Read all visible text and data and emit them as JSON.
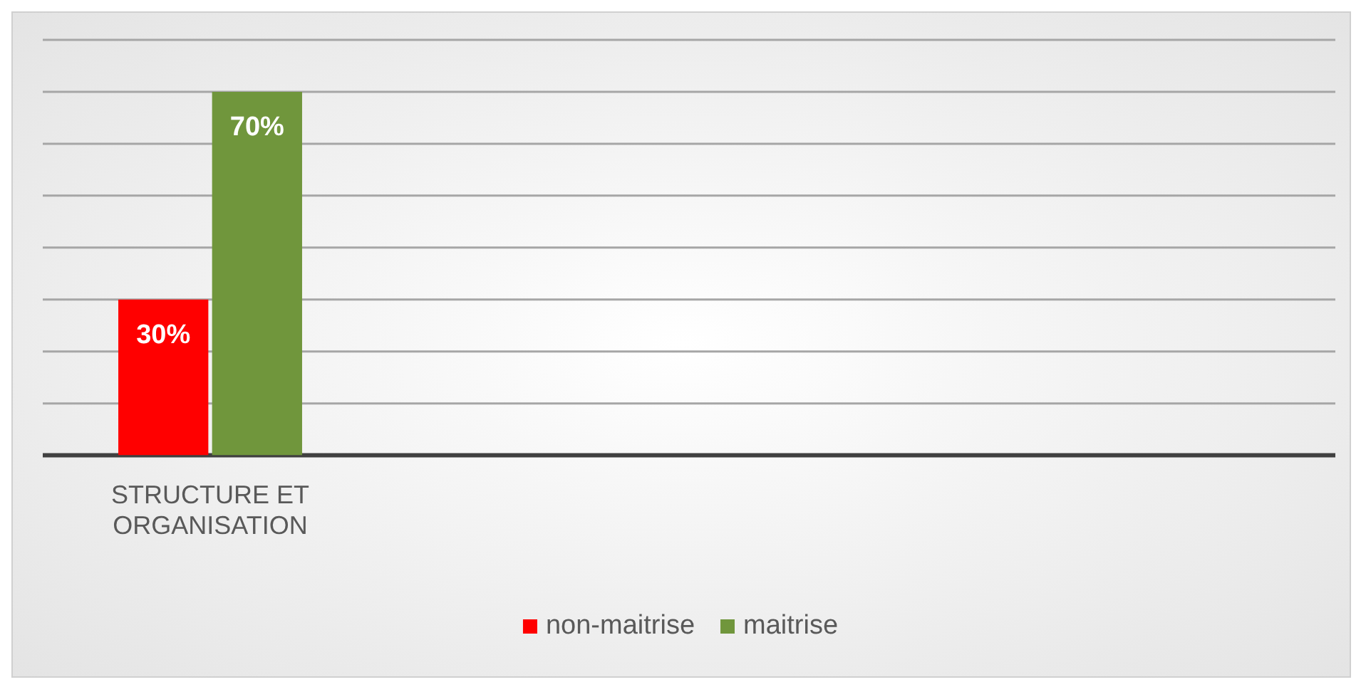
{
  "chart_data": {
    "type": "bar",
    "categories": [
      "STRUCTURE ET ORGANISATION"
    ],
    "series": [
      {
        "name": "non-maitrise",
        "color": "#ff0000",
        "values": [
          30
        ],
        "value_labels": [
          "30%"
        ]
      },
      {
        "name": "maitrise",
        "color": "#70963c",
        "values": [
          70
        ],
        "value_labels": [
          "70%"
        ]
      }
    ],
    "ylim": [
      0,
      80
    ],
    "yticks": [
      {
        "value": 0,
        "label": null
      },
      {
        "value": 10,
        "label": null
      },
      {
        "value": 20,
        "label": null
      },
      {
        "value": 30,
        "label": null
      },
      {
        "value": 40,
        "label": null
      },
      {
        "value": 50,
        "label": null
      },
      {
        "value": 60,
        "label": null
      },
      {
        "value": 70,
        "label": null
      },
      {
        "value": 80,
        "label": null
      }
    ],
    "tick_labels": "x",
    "grid": "y",
    "legend": "bottom"
  }
}
